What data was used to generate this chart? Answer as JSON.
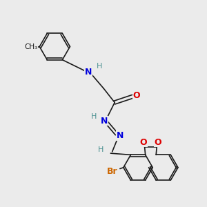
{
  "background_color": "#ebebeb",
  "bond_color": "#1a1a1a",
  "figsize": [
    3.0,
    3.0
  ],
  "dpi": 100,
  "colors": {
    "N": "#0000dd",
    "O": "#dd0000",
    "Br": "#cc6600",
    "H": "#4a9090",
    "C": "#1a1a1a"
  }
}
